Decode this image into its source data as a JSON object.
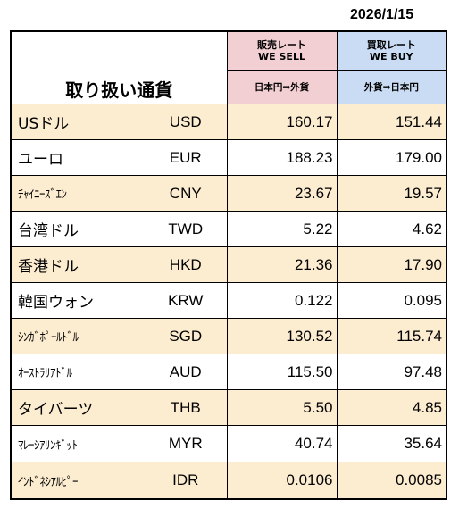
{
  "date": "2026/1/15",
  "header": {
    "title": "取り扱い通貨",
    "sell_label": "販売レート",
    "sell_label_en": "WE SELL",
    "sell_direction": "日本円⇒外貨",
    "buy_label": "買取レート",
    "buy_label_en": "WE BUY",
    "buy_direction": "外貨⇒日本円"
  },
  "colors": {
    "sell_header": "#f2cfd3",
    "buy_header": "#c9dcf3",
    "highlight_row": "#fcecd0"
  },
  "rows": [
    {
      "name": "USドル",
      "code": "USD",
      "sell": "160.17",
      "buy": "151.44"
    },
    {
      "name": "ユーロ",
      "code": "EUR",
      "sell": "188.23",
      "buy": "179.00"
    },
    {
      "name": "ﾁｬｲﾆｰｽﾞｴﾝ",
      "code": "CNY",
      "sell": "23.67",
      "buy": "19.57"
    },
    {
      "name": "台湾ドル",
      "code": "TWD",
      "sell": "5.22",
      "buy": "4.62"
    },
    {
      "name": "香港ドル",
      "code": "HKD",
      "sell": "21.36",
      "buy": "17.90"
    },
    {
      "name": "韓国ウォン",
      "code": "KRW",
      "sell": "0.122",
      "buy": "0.095"
    },
    {
      "name": "ｼﾝｶﾞﾎﾟｰﾙﾄﾞﾙ",
      "code": "SGD",
      "sell": "130.52",
      "buy": "115.74"
    },
    {
      "name": "ｵｰｽﾄﾗﾘｱﾄﾞﾙ",
      "code": "AUD",
      "sell": "115.50",
      "buy": "97.48"
    },
    {
      "name": "タイバーツ",
      "code": "THB",
      "sell": "5.50",
      "buy": "4.85"
    },
    {
      "name": "ﾏﾚｰｼｱﾘﾝｷﾞｯﾄ",
      "code": "MYR",
      "sell": "40.74",
      "buy": "35.64"
    },
    {
      "name": "ｲﾝﾄﾞﾈｼｱﾙﾋﾟｰ",
      "code": "IDR",
      "sell": "0.0106",
      "buy": "0.0085"
    }
  ]
}
